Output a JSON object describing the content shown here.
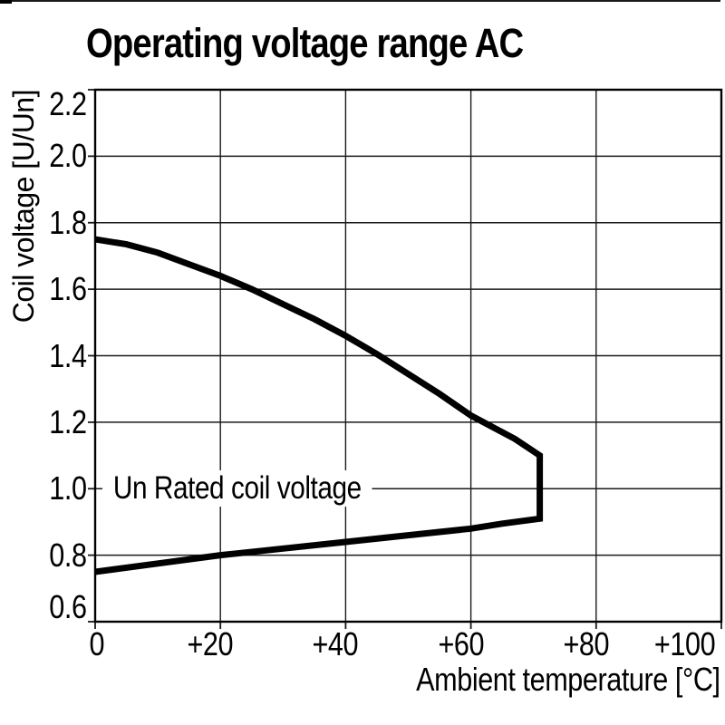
{
  "colors": {
    "background": "#ffffff",
    "text": "#000000",
    "grid": "#1a1a1a",
    "axis": "#000000",
    "curve": "#000000"
  },
  "chart_data": {
    "type": "line",
    "title": "Operating voltage range AC",
    "xlabel": "Ambient temperature [°C]",
    "ylabel": "Coil voltage [U/Un]",
    "xlim": [
      0,
      100
    ],
    "ylim": [
      0.6,
      2.2
    ],
    "grid": true,
    "annotation": "Un Rated coil voltage",
    "x_ticks": [
      {
        "value": 0,
        "label": "0"
      },
      {
        "value": 20,
        "label": "+20"
      },
      {
        "value": 40,
        "label": "+40"
      },
      {
        "value": 60,
        "label": "+60"
      },
      {
        "value": 80,
        "label": "+80"
      },
      {
        "value": 100,
        "label": "+100"
      }
    ],
    "y_ticks": [
      {
        "value": 0.6,
        "label": "0.6"
      },
      {
        "value": 0.8,
        "label": "0.8"
      },
      {
        "value": 1.0,
        "label": "1.0"
      },
      {
        "value": 1.2,
        "label": "1.2"
      },
      {
        "value": 1.4,
        "label": "1.4"
      },
      {
        "value": 1.6,
        "label": "1.6"
      },
      {
        "value": 1.8,
        "label": "1.8"
      },
      {
        "value": 2.0,
        "label": "2.0"
      },
      {
        "value": 2.2,
        "label": "2.2"
      }
    ],
    "series": [
      {
        "name": "operating-voltage-envelope",
        "color": "#000000",
        "stroke_width": 7,
        "points": [
          [
            0,
            1.75
          ],
          [
            5,
            1.735
          ],
          [
            10,
            1.71
          ],
          [
            15,
            1.675
          ],
          [
            20,
            1.64
          ],
          [
            25,
            1.6
          ],
          [
            30,
            1.555
          ],
          [
            35,
            1.51
          ],
          [
            40,
            1.46
          ],
          [
            45,
            1.405
          ],
          [
            50,
            1.345
          ],
          [
            55,
            1.285
          ],
          [
            60,
            1.22
          ],
          [
            64,
            1.18
          ],
          [
            67,
            1.15
          ],
          [
            69,
            1.125
          ],
          [
            71,
            1.1
          ],
          [
            71,
            0.91
          ],
          [
            65,
            0.895
          ],
          [
            60,
            0.88
          ],
          [
            50,
            0.86
          ],
          [
            40,
            0.84
          ],
          [
            30,
            0.82
          ],
          [
            20,
            0.8
          ],
          [
            10,
            0.775
          ],
          [
            0,
            0.75
          ]
        ]
      }
    ]
  }
}
